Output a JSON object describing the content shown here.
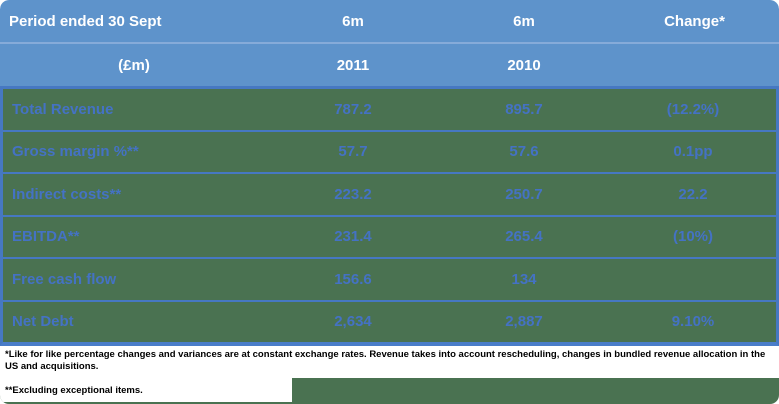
{
  "table": {
    "header": {
      "row1": {
        "period": "Period ended 30 Sept",
        "col_2011": "6m",
        "col_2010": "6m",
        "change": "Change*"
      },
      "row2": {
        "period": "(£m)",
        "col_2011": "2011",
        "col_2010": "2010",
        "change": ""
      }
    },
    "rows": [
      {
        "label": "Total Revenue",
        "y2011": "787.2",
        "y2010": "895.7",
        "change": "(12.2%)"
      },
      {
        "label": "Gross margin %**",
        "y2011": "57.7",
        "y2010": "57.6",
        "change": "0.1pp"
      },
      {
        "label": "Indirect costs**",
        "y2011": "223.2",
        "y2010": "250.7",
        "change": "22.2"
      },
      {
        "label": "EBITDA**",
        "y2011": "231.4",
        "y2010": "265.4",
        "change": "(10%)"
      },
      {
        "label": "Free cash flow",
        "y2011": "156.6",
        "y2010": "134",
        "change": ""
      },
      {
        "label": "Net Debt",
        "y2011": "2,634",
        "y2010": "2,887",
        "change": "9.10%"
      }
    ],
    "footnotes": {
      "note1": "*Like for like percentage changes and variances are at constant exchange rates.  Revenue takes into account rescheduling, changes in bundled revenue allocation in the US and acquisitions.",
      "note2": "**Excluding exceptional items."
    },
    "colors": {
      "header_blue": "#5e93cb",
      "row_green": "#4a7251",
      "border_blue": "#4678c2",
      "value_text_blue": "#4472c4",
      "header_text": "#ffffff",
      "footnote_text": "#000000"
    }
  },
  "chart_data": {
    "type": "table",
    "title": "Period ended 30 Sept (£m)",
    "columns": [
      "Period ended 30 Sept (£m)",
      "6m 2011",
      "6m 2010",
      "Change*"
    ],
    "rows": [
      [
        "Total Revenue",
        787.2,
        895.7,
        "(12.2%)"
      ],
      [
        "Gross margin %**",
        57.7,
        57.6,
        "0.1pp"
      ],
      [
        "Indirect costs**",
        223.2,
        250.7,
        "22.2"
      ],
      [
        "EBITDA**",
        231.4,
        265.4,
        "(10%)"
      ],
      [
        "Free cash flow",
        156.6,
        134,
        ""
      ],
      [
        "Net Debt",
        2634,
        2887,
        "9.10%"
      ]
    ]
  }
}
